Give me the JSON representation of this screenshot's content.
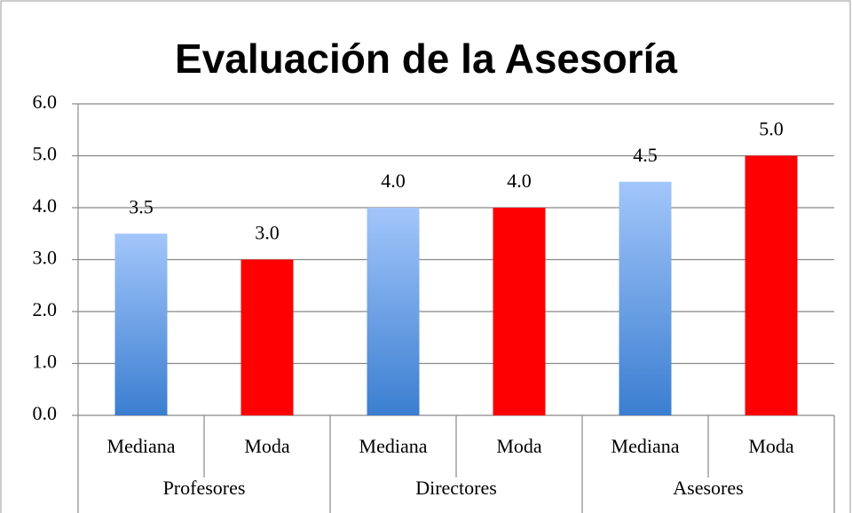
{
  "chart_data": {
    "type": "bar",
    "title": "Evaluación de la Asesoría",
    "categories": [
      "Mediana",
      "Moda",
      "Mediana",
      "Moda",
      "Mediana",
      "Moda"
    ],
    "groups": [
      "Profesores",
      "Directores",
      "Asesores"
    ],
    "values": [
      3.5,
      3.0,
      4.0,
      4.0,
      4.5,
      5.0
    ],
    "value_labels": [
      "3.5",
      "3.0",
      "4.0",
      "4.0",
      "4.5",
      "5.0"
    ],
    "colors": [
      {
        "top": "#a2c6fa",
        "bottom": "#3b7ed0"
      },
      "#ff0000",
      {
        "top": "#a2c6fa",
        "bottom": "#3b7ed0"
      },
      "#ff0000",
      {
        "top": "#a2c6fa",
        "bottom": "#3b7ed0"
      },
      "#ff0000"
    ],
    "ylim": [
      0,
      6
    ],
    "yticks": [
      {
        "value": 0,
        "label": "0.0"
      },
      {
        "value": 1,
        "label": "1.0"
      },
      {
        "value": 2,
        "label": "2.0"
      },
      {
        "value": 3,
        "label": "3.0"
      },
      {
        "value": 4,
        "label": "4.0"
      },
      {
        "value": 5,
        "label": "5.0"
      },
      {
        "value": 6,
        "label": "6.0"
      }
    ],
    "grid": true
  }
}
